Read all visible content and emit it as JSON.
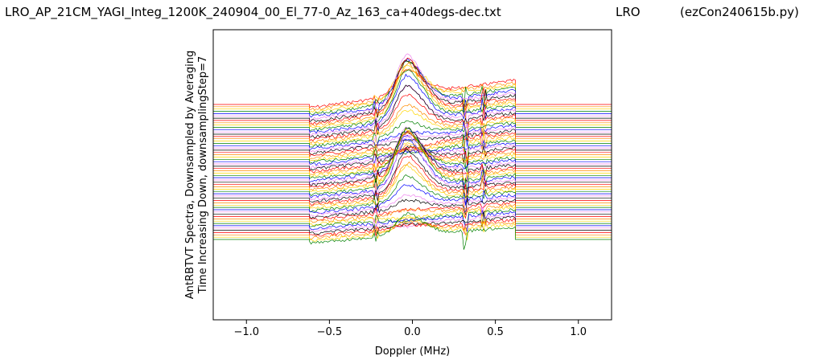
{
  "header": {
    "filename": "LRO_AP_21CM_YAGI_Integ_1200K_240904_00_El_77-0_Az_163_ca+40degs-dec.txt",
    "site": "LRO",
    "program": "(ezCon240615b.py)"
  },
  "chart_data": {
    "type": "line",
    "title": "",
    "xlabel": "Doppler (MHz)",
    "ylabel_line1": "AntRBTVT Spectra, Downsampled by Averaging",
    "ylabel_line2": "Time Increasing Down, downsamplingStep=7",
    "xlim": [
      -1.2,
      1.2
    ],
    "xticks": [
      -1.0,
      -0.5,
      0.0,
      0.5,
      1.0
    ],
    "xtick_labels": [
      "−1.0",
      "−0.5",
      "0.0",
      "0.5",
      "1.0"
    ],
    "yticks_visible": false,
    "grid": false,
    "series_count": 60,
    "series_colors": [
      "#ff0000",
      "#ff8c00",
      "#ffd700",
      "#008000",
      "#0000ff",
      "#ee82ee",
      "#000000"
    ],
    "flat_region_ranges": [
      [
        -1.2,
        -0.62
      ],
      [
        0.62,
        1.2
      ]
    ],
    "data_region": [
      -0.62,
      0.62
    ],
    "spectral_features_mhz": [
      -0.25,
      -0.18,
      0.0,
      0.31,
      0.35,
      0.42,
      0.45
    ]
  }
}
